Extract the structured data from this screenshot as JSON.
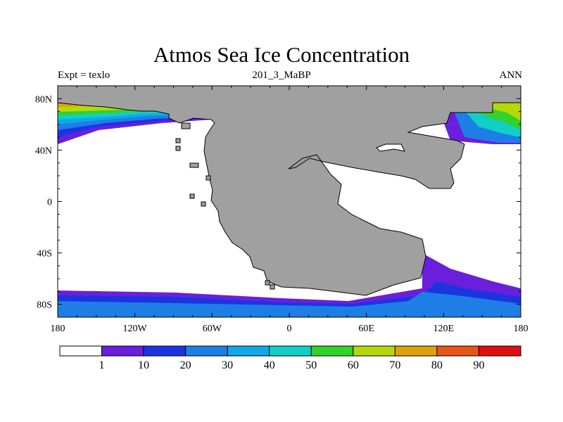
{
  "title": "Atmos Sea Ice Concentration",
  "subtitle_left": "Expt = texlo",
  "subtitle_center": "201_3_MaBP",
  "subtitle_right": "ANN",
  "map": {
    "lon_range": [
      -180,
      180
    ],
    "lat_range": [
      -90,
      90
    ],
    "x_ticks": [
      {
        "lon": -180,
        "label": "180"
      },
      {
        "lon": -120,
        "label": "120W"
      },
      {
        "lon": -60,
        "label": "60W"
      },
      {
        "lon": 0,
        "label": "0"
      },
      {
        "lon": 60,
        "label": "60E"
      },
      {
        "lon": 120,
        "label": "120E"
      },
      {
        "lon": 180,
        "label": "180"
      }
    ],
    "y_ticks": [
      {
        "lat": 80,
        "label": "80N"
      },
      {
        "lat": 40,
        "label": "40N"
      },
      {
        "lat": 0,
        "label": "0"
      },
      {
        "lat": -40,
        "label": "40S"
      },
      {
        "lat": -80,
        "label": "80S"
      }
    ],
    "land_color": "#a0a0a0",
    "ocean_color": "#ffffff"
  },
  "colorbar": {
    "bins": [
      {
        "color": "#ffffff"
      },
      {
        "color": "#6a1fdc"
      },
      {
        "color": "#1c34e0"
      },
      {
        "color": "#1d7fe6"
      },
      {
        "color": "#0fa8e8"
      },
      {
        "color": "#10cfc8"
      },
      {
        "color": "#31d22a"
      },
      {
        "color": "#b6d80a"
      },
      {
        "color": "#e0a008"
      },
      {
        "color": "#e85516"
      },
      {
        "color": "#e01010"
      }
    ],
    "labels": [
      "1",
      "10",
      "20",
      "30",
      "40",
      "50",
      "60",
      "70",
      "80",
      "90"
    ]
  }
}
